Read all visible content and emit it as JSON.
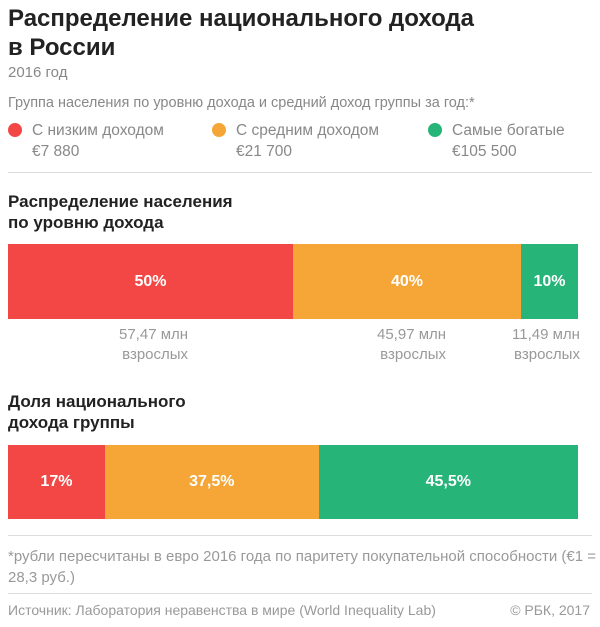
{
  "header": {
    "title": "Распределение национального дохода\nв России",
    "subtitle": "2016 год"
  },
  "legend": {
    "heading": "Группа населения по уровню дохода и средний доход группы за год:*",
    "items": [
      {
        "name": "С низким доходом",
        "value": "€7 880",
        "color": "#f24745"
      },
      {
        "name": "С средним доходом",
        "value": "€21 700",
        "color": "#f5a637"
      },
      {
        "name": "Самые богатые",
        "value": "€105 500",
        "color": "#26b478"
      }
    ]
  },
  "chart_data": [
    {
      "type": "bar",
      "stacked": "horizontal",
      "title": "Распределение населения\nпо уровню дохода",
      "categories": [
        "С низким доходом",
        "С средним доходом",
        "Самые богатые"
      ],
      "values": [
        50,
        40,
        10
      ],
      "value_labels": [
        "50%",
        "40%",
        "10%"
      ],
      "annotations": [
        "57,47 млн\nвзрослых",
        "45,97 млн\nвзрослых",
        "11,49 млн\nвзрослых"
      ],
      "colors": [
        "#f24745",
        "#f5a637",
        "#26b478"
      ]
    },
    {
      "type": "bar",
      "stacked": "horizontal",
      "title": "Доля национального\nдохода группы",
      "categories": [
        "С низким доходом",
        "С средним доходом",
        "Самые богатые"
      ],
      "values": [
        17,
        37.5,
        45.5
      ],
      "value_labels": [
        "17%",
        "37,5%",
        "45,5%"
      ],
      "colors": [
        "#f24745",
        "#f5a637",
        "#26b478"
      ]
    }
  ],
  "footer": {
    "footnote": "*рубли пересчитаны в евро 2016 года по паритету покупательной способности (€1 = 28,3 руб.)",
    "source": "Источник: Лаборатория неравенства в мире (World Inequality Lab)",
    "copyright": "© РБК, 2017"
  }
}
